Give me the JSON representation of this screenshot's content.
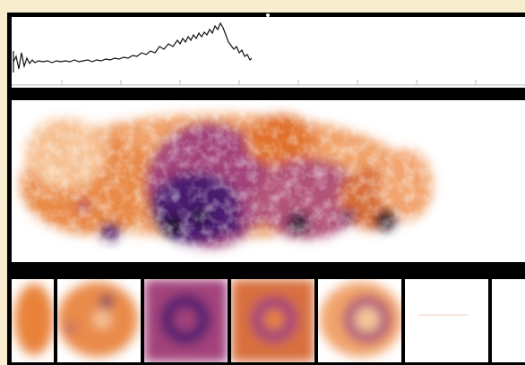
{
  "figure": {
    "trace_color": "#111111",
    "colormap": [
      "#ffffff",
      "#f7c49a",
      "#e9823b",
      "#a3427a",
      "#4b1f6e",
      "#160a25"
    ],
    "background_color": "#f8eecf",
    "film_frame_count": 8
  }
}
